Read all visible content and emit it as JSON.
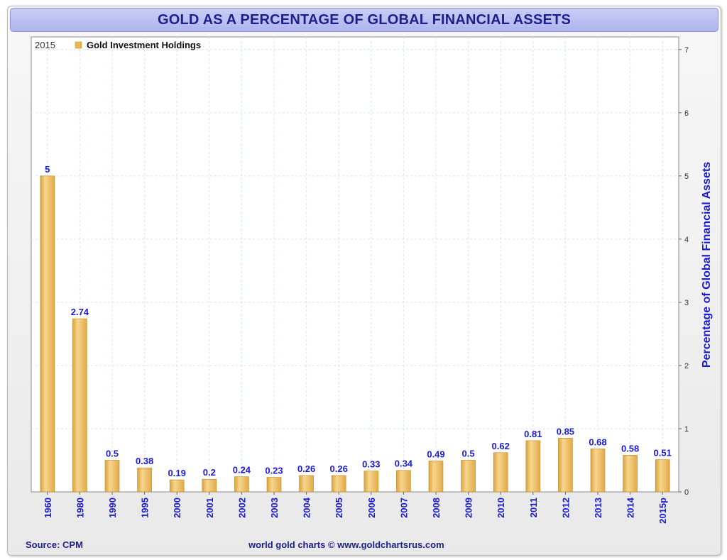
{
  "title": "GOLD AS A PERCENTAGE OF GLOBAL FINANCIAL ASSETS",
  "footer": {
    "source": "Source: CPM",
    "credit": "world gold charts © www.goldchartsrus.com"
  },
  "colors": {
    "bar": "#e9b552",
    "bar_highlight": "#f6d68e",
    "bar_edge": "#c08a2a",
    "label": "#1a1ad6",
    "grid": "#d6e3f2"
  },
  "chart_data": {
    "type": "bar",
    "year_label": "2015",
    "legend": [
      "Gold Investment Holdings"
    ],
    "legend_position": "top-left",
    "categories": [
      "1960",
      "1980",
      "1990",
      "1995",
      "2000",
      "2001",
      "2002",
      "2003",
      "2004",
      "2005",
      "2006",
      "2007",
      "2008",
      "2009",
      "2010",
      "2011",
      "2012",
      "2013",
      "2014",
      "2015p"
    ],
    "series": [
      {
        "name": "Gold Investment Holdings",
        "values": [
          5,
          2.74,
          0.5,
          0.38,
          0.19,
          0.2,
          0.24,
          0.23,
          0.26,
          0.26,
          0.33,
          0.34,
          0.49,
          0.5,
          0.62,
          0.81,
          0.85,
          0.68,
          0.58,
          0.51
        ],
        "labels": [
          "5",
          "2.74",
          "0.5",
          "0.38",
          "0.19",
          "0.2",
          "0.24",
          "0.23",
          "0.26",
          "0.26",
          "0.33",
          "0.34",
          "0.49",
          "0.5",
          "0.62",
          "0.81",
          "0.85",
          "0.68",
          "0.58",
          "0.51"
        ]
      }
    ],
    "ylabel": "Percentage of Global Financial Assets",
    "yticks": [
      0,
      1,
      2,
      3,
      4,
      5,
      6,
      7
    ],
    "ylim": [
      0,
      7.2
    ],
    "y_axis_side": "right",
    "grid": true
  }
}
